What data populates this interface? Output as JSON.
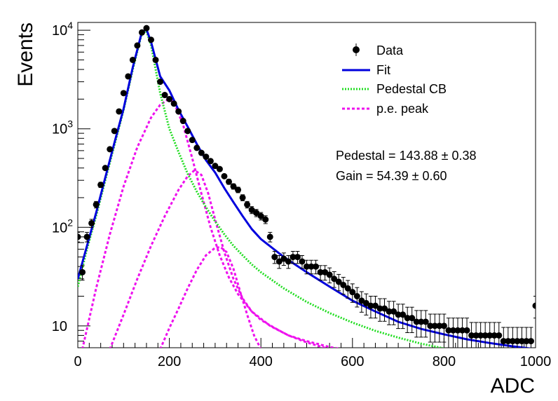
{
  "chart_data": {
    "type": "line",
    "title": "",
    "xlabel": "ADC",
    "ylabel": "Events",
    "xlim": [
      0,
      1000
    ],
    "ylim": [
      6,
      12000
    ],
    "y_scale": "log",
    "x_ticks": [
      "0",
      "200",
      "400",
      "600",
      "800",
      "1000"
    ],
    "y_ticks": [
      {
        "base": "10",
        "exp": "",
        "value": 10
      },
      {
        "base": "10",
        "exp": "2",
        "value": 100
      },
      {
        "base": "10",
        "exp": "3",
        "value": 1000
      },
      {
        "base": "10",
        "exp": "4",
        "value": 10000
      }
    ],
    "grid": false,
    "legend_position": "top-right",
    "legend": [
      {
        "label": "Data",
        "style": "marker"
      },
      {
        "label": "Fit",
        "style": "solid",
        "color": "#0000dd"
      },
      {
        "label": "Pedestal CB",
        "style": "dotted",
        "color": "#22dd22"
      },
      {
        "label": "p.e. peak",
        "style": "dashed",
        "color": "#ee11ee"
      }
    ],
    "annotations": [
      {
        "text": "Pedestal = 143.88 ± 0.38"
      },
      {
        "text": "Gain = 54.39 ± 0.60"
      }
    ],
    "fit": {
      "pedestal": 143.88,
      "pedestal_err": 0.38,
      "gain": 54.39,
      "gain_err": 0.6
    },
    "series": [
      {
        "name": "Data",
        "kind": "points",
        "x": [
          0,
          10,
          20,
          30,
          40,
          50,
          60,
          70,
          80,
          90,
          100,
          110,
          120,
          130,
          140,
          150,
          160,
          170,
          180,
          190,
          200,
          210,
          220,
          230,
          240,
          250,
          260,
          270,
          280,
          290,
          300,
          310,
          320,
          330,
          340,
          350,
          360,
          370,
          380,
          390,
          400,
          410,
          420,
          430,
          440,
          450,
          460,
          470,
          480,
          490,
          500,
          510,
          520,
          530,
          540,
          550,
          560,
          570,
          580,
          590,
          600,
          610,
          620,
          630,
          640,
          650,
          660,
          670,
          680,
          690,
          700,
          710,
          720,
          730,
          740,
          750,
          760,
          770,
          780,
          790,
          800,
          810,
          820,
          830,
          840,
          850,
          860,
          870,
          880,
          890,
          900,
          910,
          920,
          930,
          940,
          950,
          960,
          970,
          980,
          990,
          1000
        ],
        "y": [
          80,
          35,
          80,
          110,
          170,
          270,
          400,
          620,
          950,
          1500,
          2300,
          3400,
          5000,
          7000,
          9500,
          10500,
          8000,
          5000,
          3000,
          2200,
          2000,
          1800,
          1500,
          1200,
          950,
          770,
          640,
          570,
          520,
          470,
          420,
          390,
          330,
          290,
          260,
          240,
          200,
          170,
          150,
          140,
          130,
          120,
          80,
          50,
          45,
          48,
          45,
          50,
          50,
          45,
          40,
          40,
          40,
          35,
          35,
          33,
          30,
          28,
          26,
          24,
          22,
          20,
          18,
          17,
          16,
          16,
          15,
          15,
          14,
          14,
          13,
          13,
          12,
          12,
          11,
          11,
          11,
          10,
          10,
          10,
          10,
          9,
          9,
          9,
          9,
          9,
          8,
          8,
          8,
          8,
          8,
          8,
          8,
          7,
          7,
          7,
          7,
          7,
          7,
          7,
          16
        ]
      },
      {
        "name": "Fit",
        "kind": "curve",
        "x": [
          0,
          20,
          40,
          60,
          80,
          100,
          120,
          140,
          150,
          160,
          180,
          200,
          220,
          240,
          260,
          280,
          300,
          320,
          340,
          360,
          380,
          400,
          450,
          500,
          550,
          600,
          650,
          700,
          750,
          800,
          850,
          900,
          950,
          1000
        ],
        "y": [
          30,
          65,
          140,
          320,
          720,
          1600,
          4200,
          9600,
          10200,
          7600,
          3400,
          2450,
          1550,
          1050,
          700,
          480,
          360,
          250,
          180,
          130,
          96,
          76,
          50,
          35,
          25,
          18,
          14,
          11,
          9.3,
          8.2,
          7.3,
          6.7,
          6.2,
          5.8
        ]
      },
      {
        "name": "Pedestal CB",
        "kind": "curve",
        "x": [
          0,
          20,
          40,
          60,
          80,
          100,
          120,
          140,
          150,
          160,
          180,
          200,
          220,
          240,
          260,
          280,
          300,
          320,
          340,
          360,
          380,
          400,
          450,
          500,
          550,
          600,
          650,
          700,
          750,
          800,
          850
        ],
        "y": [
          25,
          60,
          130,
          300,
          680,
          1550,
          4000,
          9300,
          9800,
          7000,
          2300,
          1000,
          580,
          350,
          230,
          160,
          115,
          85,
          65,
          52,
          42,
          35,
          24,
          17.5,
          13.5,
          10.8,
          8.9,
          7.6,
          6.6,
          5.9,
          5.3
        ]
      },
      {
        "name": "p.e. peak 1",
        "kind": "curve",
        "x": [
          10,
          40,
          70,
          100,
          130,
          160,
          180,
          198,
          210,
          230,
          250,
          270,
          290,
          310,
          330,
          350,
          380,
          420,
          460,
          500,
          550
        ],
        "y": [
          5.8,
          24,
          85,
          260,
          650,
          1300,
          1750,
          2000,
          1850,
          1100,
          500,
          220,
          100,
          52,
          31,
          21,
          14,
          10,
          8,
          6.8,
          5.8
        ]
      },
      {
        "name": "p.e. peak 2",
        "kind": "curve",
        "x": [
          70,
          100,
          130,
          160,
          190,
          220,
          240,
          255,
          270,
          285,
          300,
          320,
          340,
          360,
          380,
          400,
          430,
          460,
          500,
          550,
          580
        ],
        "y": [
          5.8,
          13,
          30,
          65,
          130,
          240,
          330,
          380,
          340,
          220,
          120,
          56,
          30,
          19,
          14,
          11.5,
          9.5,
          8,
          7,
          6.1,
          5.8
        ]
      },
      {
        "name": "p.e. peak 3",
        "kind": "curve",
        "x": [
          180,
          200,
          220,
          240,
          260,
          280,
          300,
          312,
          325,
          340,
          355,
          370,
          385,
          400
        ],
        "y": [
          5.8,
          9.5,
          15,
          24,
          37,
          52,
          62,
          63,
          56,
          38,
          22,
          13,
          8,
          5.8
        ]
      }
    ]
  }
}
